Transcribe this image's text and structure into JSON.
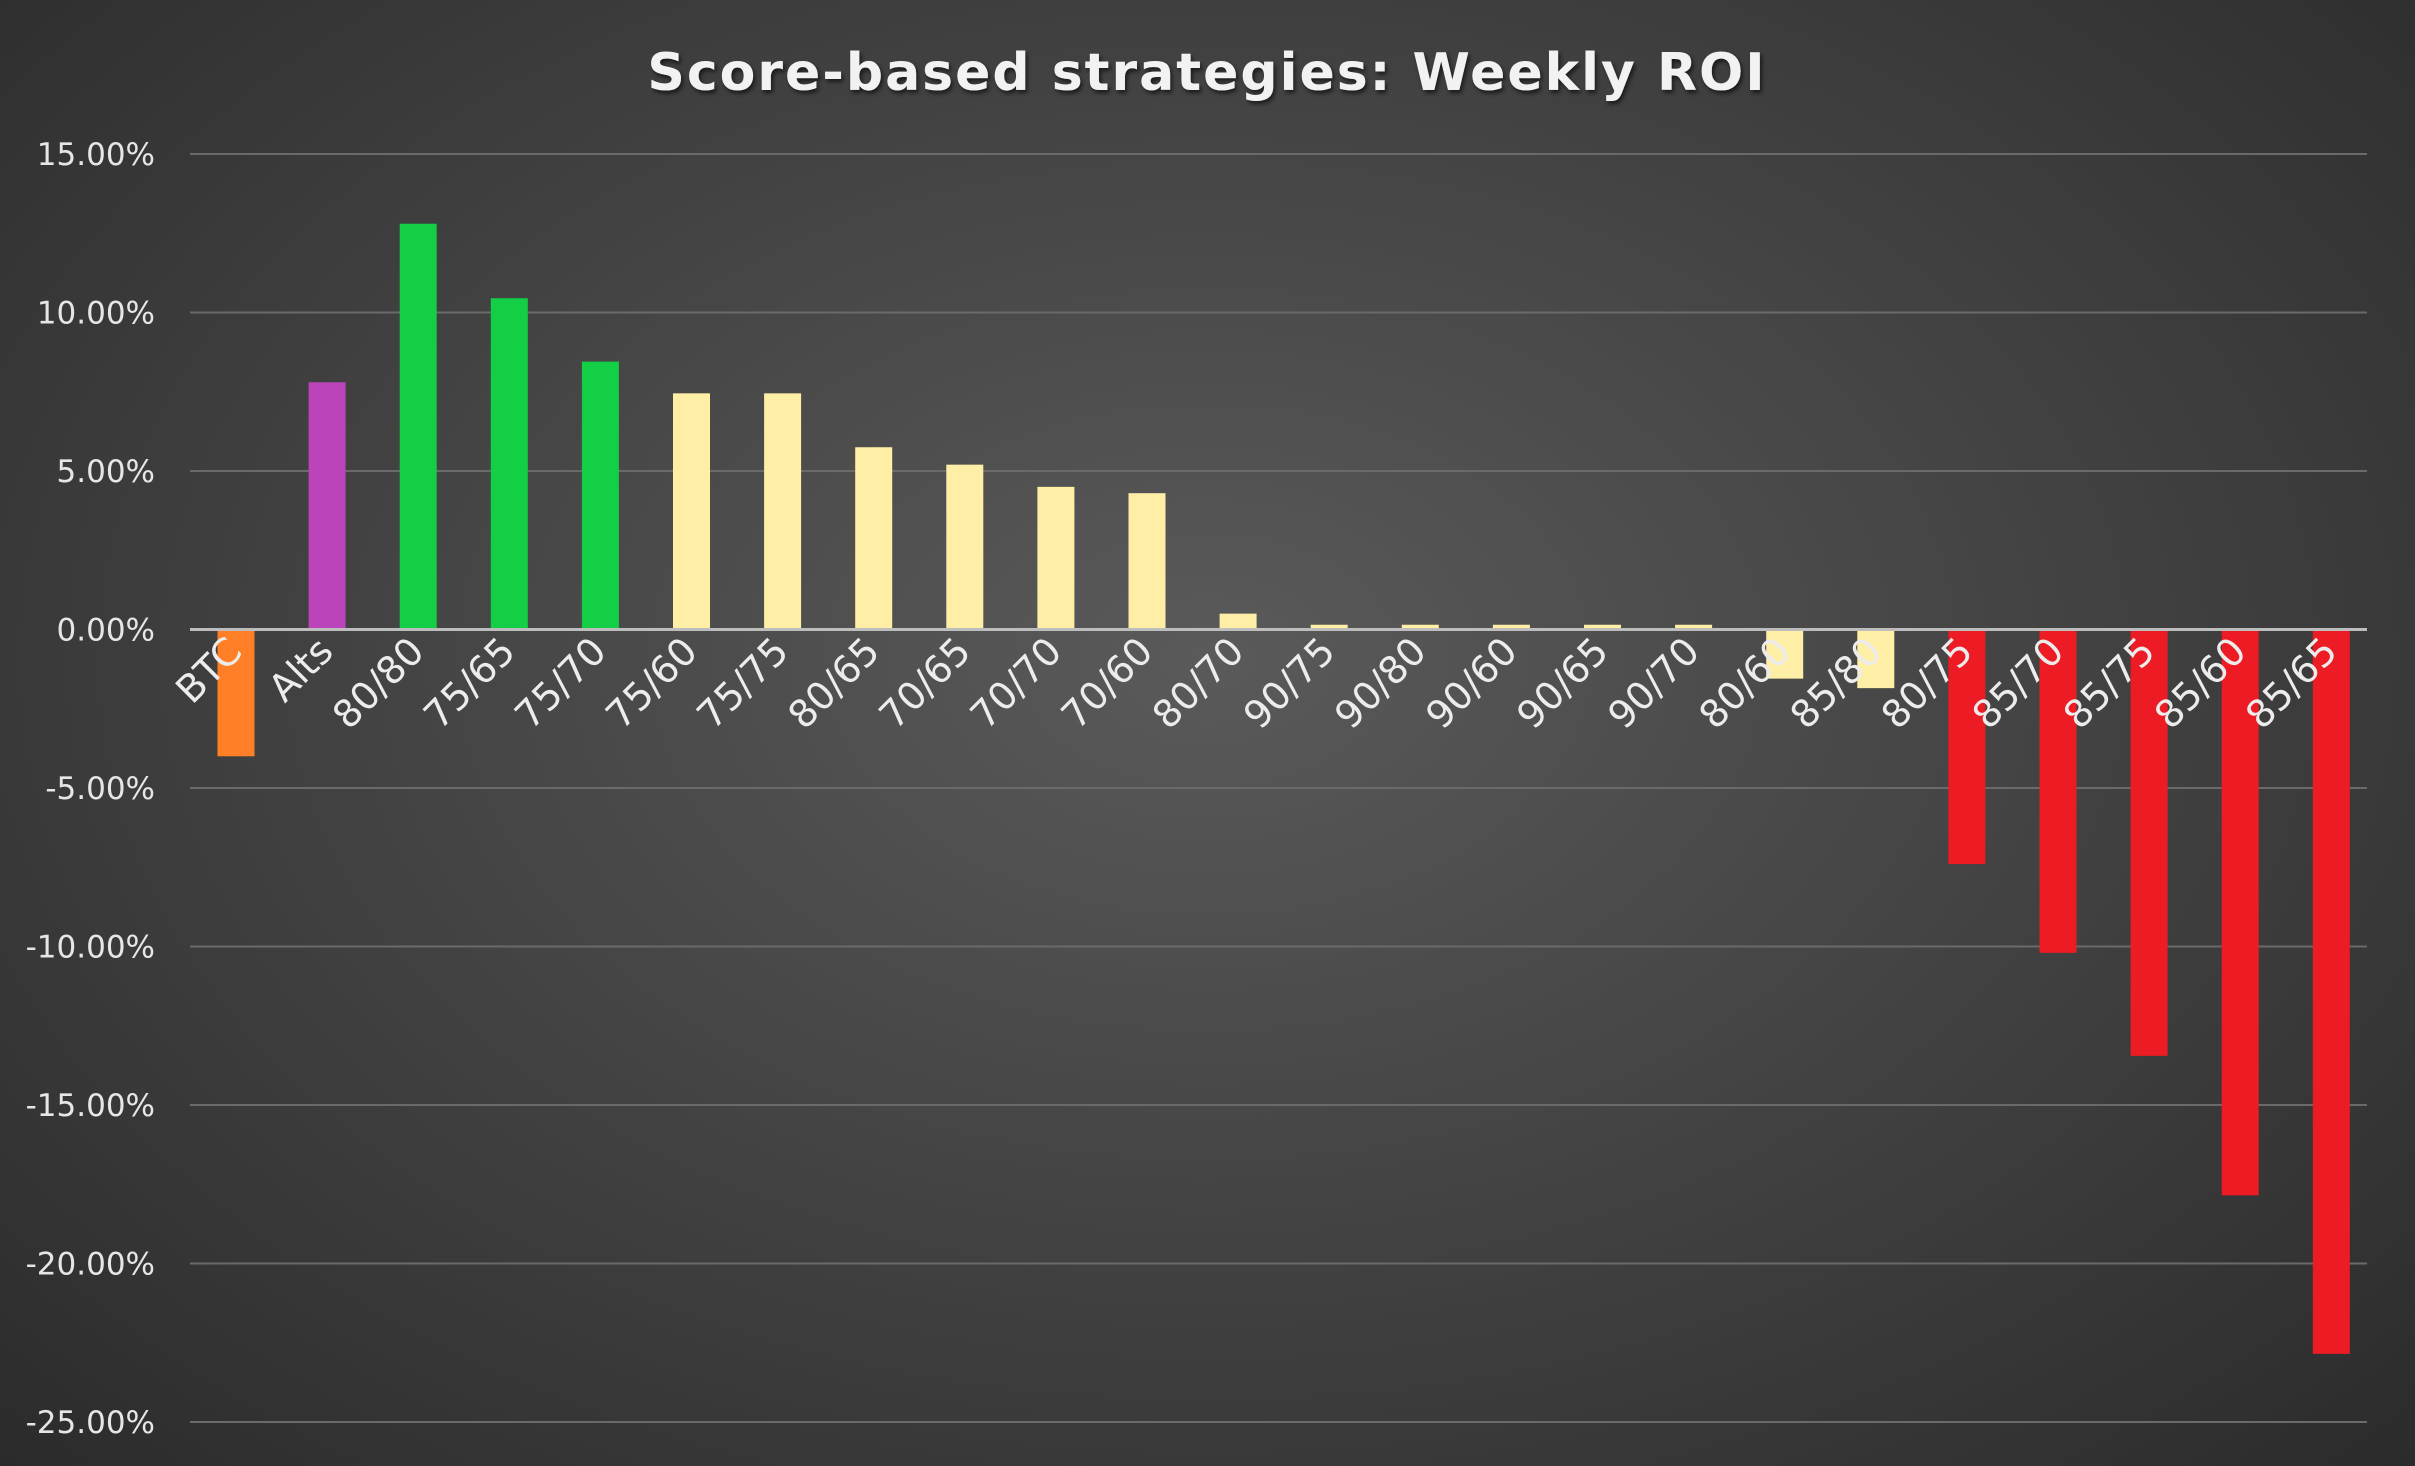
{
  "chart_data": {
    "type": "bar",
    "title": "Score-based strategies: Weekly ROI",
    "xlabel": "",
    "ylabel": "",
    "ylim": [
      -25,
      15
    ],
    "y_ticks": [
      "15.00%",
      "10.00%",
      "5.00%",
      "0.00%",
      "-5.00%",
      "-10.00%",
      "-15.00%",
      "-20.00%",
      "-25.00%"
    ],
    "grid": true,
    "legend": "none",
    "categories": [
      "BTC",
      "Alts",
      "80/80",
      "75/65",
      "75/70",
      "75/60",
      "75/75",
      "80/65",
      "70/65",
      "70/70",
      "70/60",
      "80/70",
      "90/75",
      "90/80",
      "90/60",
      "90/65",
      "90/70",
      "80/60",
      "85/80",
      "80/75",
      "85/70",
      "85/75",
      "85/60",
      "85/65"
    ],
    "values": [
      -4.0,
      7.8,
      12.8,
      10.45,
      8.45,
      7.45,
      7.45,
      5.75,
      5.2,
      4.5,
      4.3,
      0.5,
      0.15,
      0.15,
      0.15,
      0.15,
      0.15,
      -1.55,
      -1.85,
      -7.4,
      -10.2,
      -13.45,
      -17.85,
      -22.85
    ],
    "bar_colors": [
      "#ff7f27",
      "#bb44bb",
      "#13cf45",
      "#13cf45",
      "#13cf45",
      "#ffefa6",
      "#ffefa6",
      "#ffefa6",
      "#ffefa6",
      "#ffefa6",
      "#ffefa6",
      "#ffefa6",
      "#ffefa6",
      "#ffefa6",
      "#ffefa6",
      "#ffefa6",
      "#ffefa6",
      "#ffefa6",
      "#ffefa6",
      "#ed1c24",
      "#ed1c24",
      "#ed1c24",
      "#ed1c24",
      "#ed1c24"
    ]
  }
}
